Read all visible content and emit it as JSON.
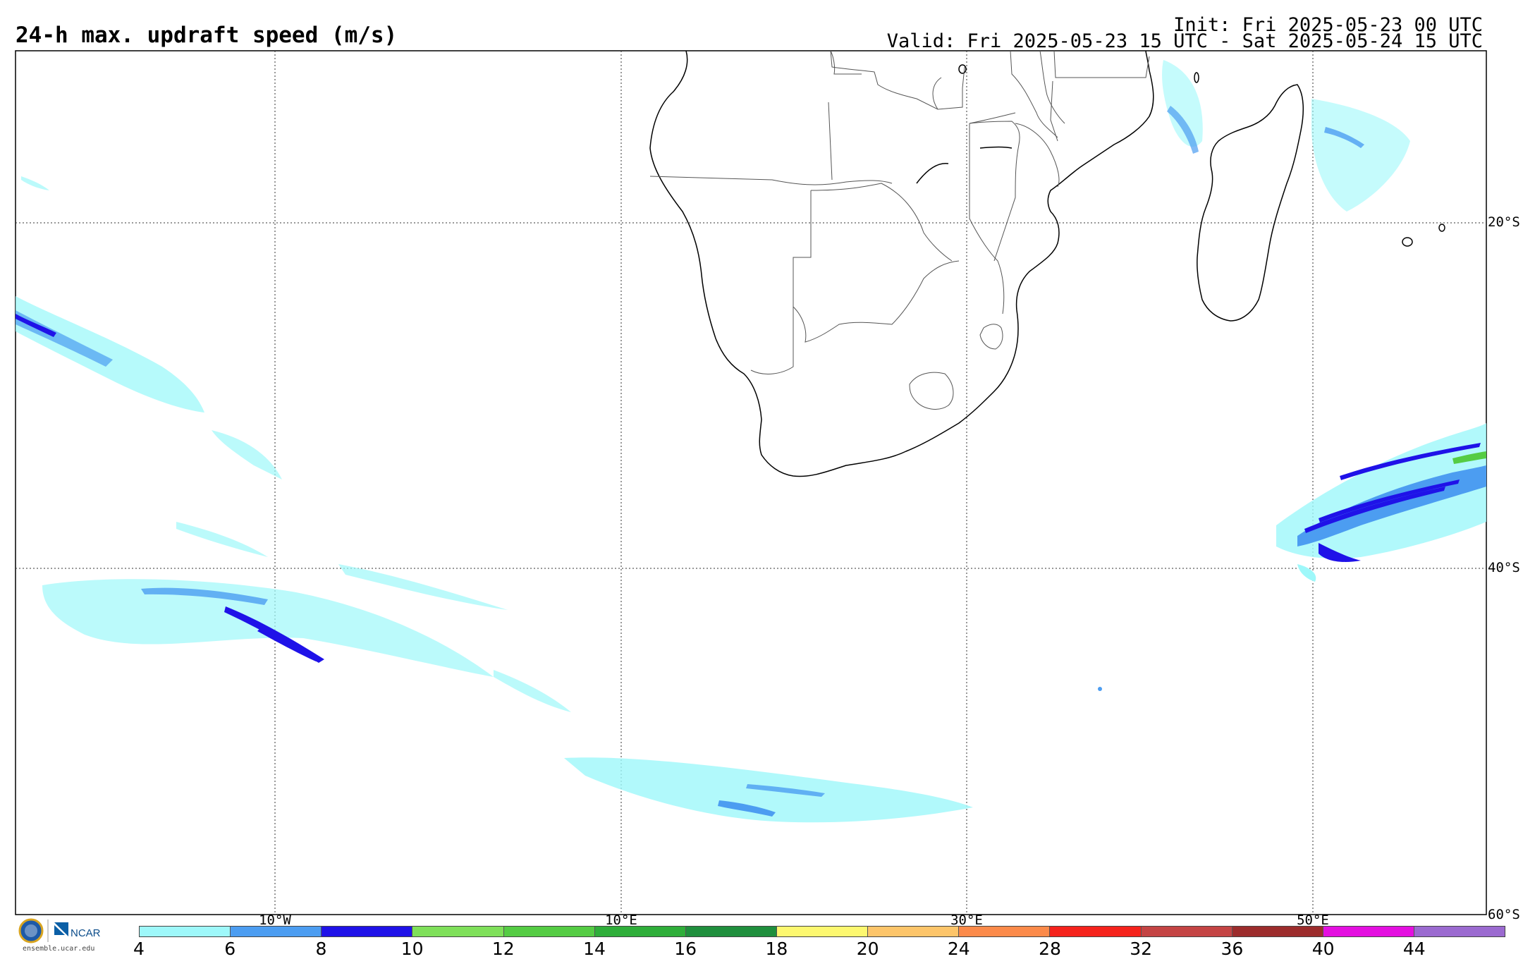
{
  "header": {
    "title": "24-h max. updraft speed (m/s)",
    "init": "Init: Fri 2025-05-23 00 UTC",
    "valid": "Valid: Fri 2025-05-23 15 UTC - Sat 2025-05-24 15 UTC"
  },
  "map": {
    "lat_labels": [
      "20°S",
      "40°S",
      "60°S"
    ],
    "lon_labels": [
      "10°W",
      "10°E",
      "30°E",
      "50°E"
    ]
  },
  "colorbar": {
    "ticks": [
      "4",
      "6",
      "8",
      "10",
      "12",
      "14",
      "16",
      "18",
      "20",
      "24",
      "28",
      "32",
      "36",
      "40",
      "44"
    ],
    "colors": [
      "#9ef8fa",
      "#4c9df1",
      "#1f12e8",
      "#7fe05a",
      "#55cc44",
      "#2fae3a",
      "#1f8f3d",
      "#fdf870",
      "#fdc56a",
      "#fb8a4a",
      "#f5231c",
      "#c44444",
      "#9c2c2c",
      "#e40fe0",
      "#9b6ad0"
    ]
  },
  "footer": {
    "logo_text": "NCAR",
    "url": "ensemble.ucar.edu"
  }
}
